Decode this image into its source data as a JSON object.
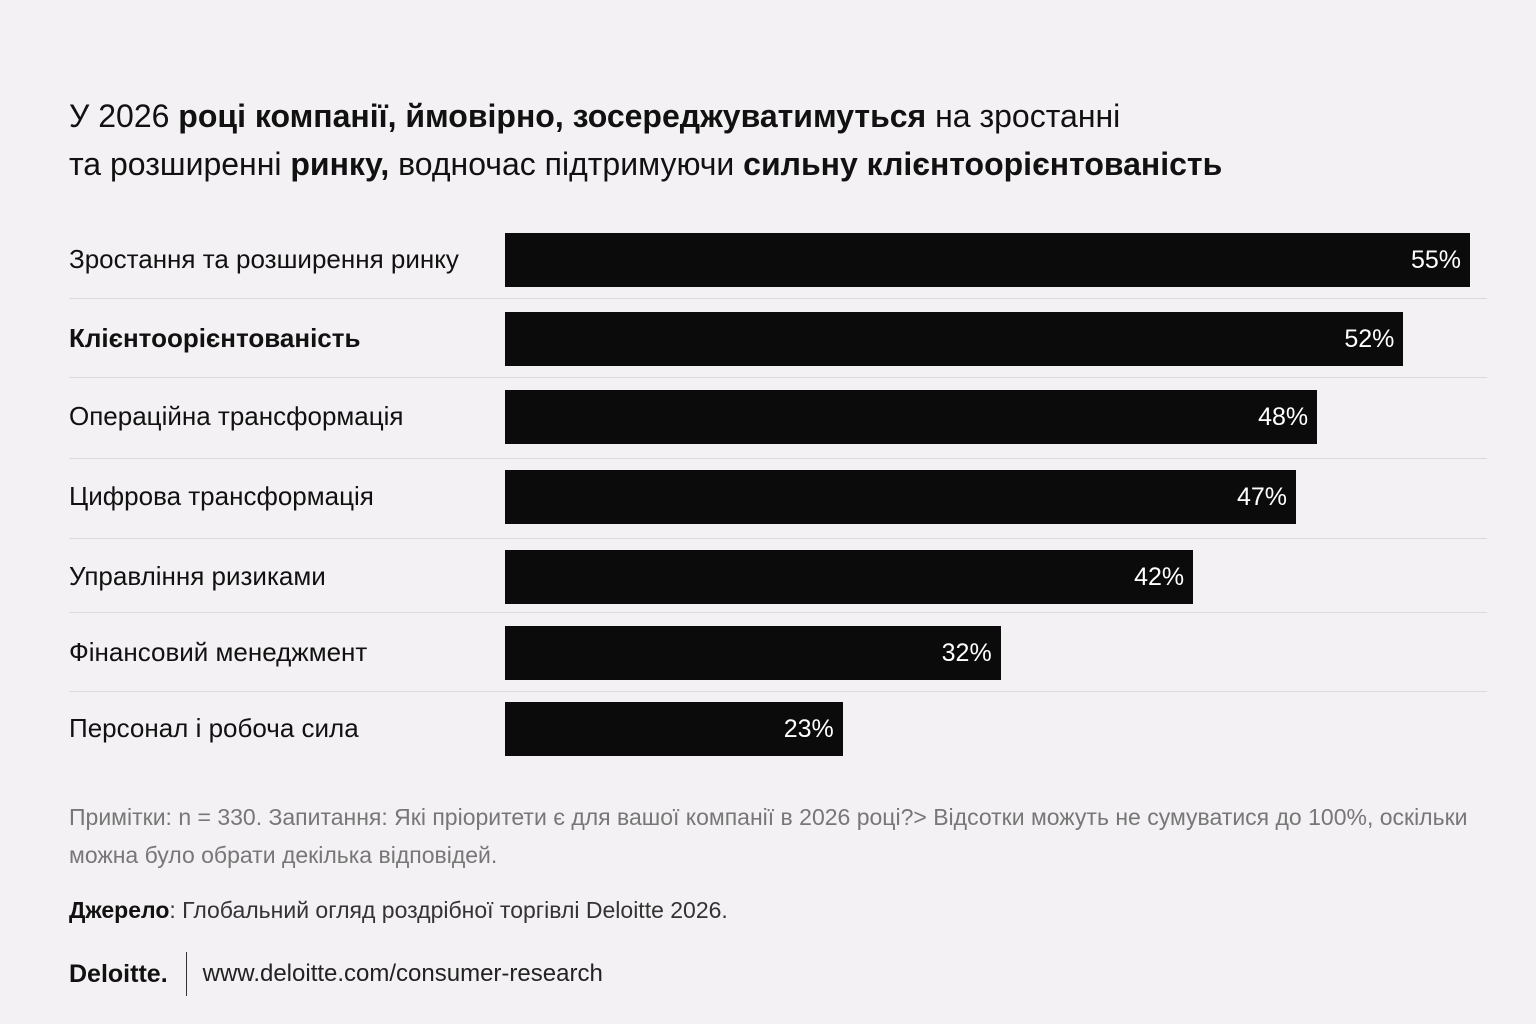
{
  "title": {
    "segments": [
      {
        "text": "У 2026 ",
        "bold": false
      },
      {
        "text": "році компанії, ймовірно, зосереджуватимуться",
        "bold": true
      },
      {
        "text": " на зростанні",
        "bold": false
      },
      {
        "text": "\nта розширенні ",
        "bold": false
      },
      {
        "text": "ринку,",
        "bold": true
      },
      {
        "text": " водночас підтримуючи ",
        "bold": false
      },
      {
        "text": "сильну клієнтоорієнтованість",
        "bold": true
      }
    ]
  },
  "chart_data": {
    "type": "bar",
    "orientation": "horizontal",
    "categories": [
      "Зростання та розширення ринку",
      "Клієнтоорієнтованість",
      "Операційна трансформація",
      "Цифрова трансформація",
      "Управління ризиками",
      "Фінансовий менеджмент",
      "Персонал і робоча сила"
    ],
    "bold_categories": [
      "Клієнтоорієнтованість"
    ],
    "values": [
      55,
      52,
      48,
      47,
      42,
      32,
      23
    ],
    "value_labels": [
      "55%",
      "52%",
      "48%",
      "47%",
      "42%",
      "32%",
      "23%"
    ],
    "bar_color": "#0b0b0b",
    "grid": false,
    "xlim": [
      0,
      58
    ]
  },
  "notes": "Примітки: n = 330. Запитання: Які пріоритети є для вашої компанії в 2026 році?> Відсотки можуть не сумуватися до 100%, оскільки можна було обрати декілька відповідей.",
  "source": {
    "label": "Джерело",
    "text": ": Глобальний огляд роздрібної торгівлі Deloitte 2026."
  },
  "footer": {
    "logo": "Deloitte",
    "logo_dot": ".",
    "url": "www.deloitte.com/consumer-research"
  }
}
